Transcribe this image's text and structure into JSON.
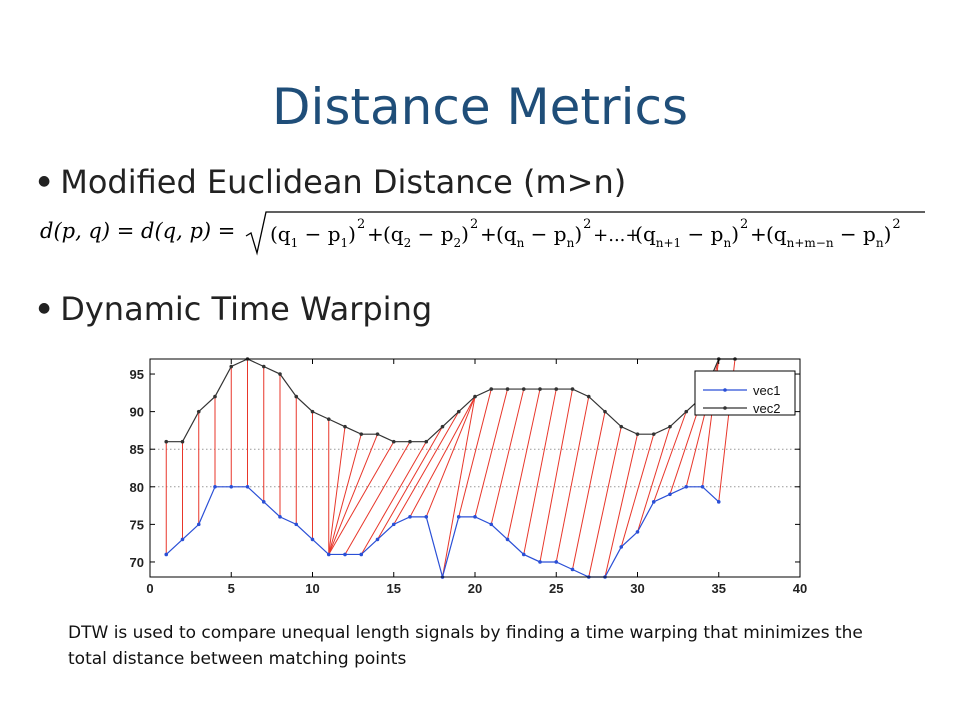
{
  "slide": {
    "title": "Distance Metrics",
    "bullets": [
      "Modified Euclidean Distance (m>n)",
      "Dynamic Time Warping"
    ],
    "formula": {
      "lhs": "d(p, q) = d(q, p) = ",
      "terms": [
        [
          "q",
          "1",
          "p",
          "1"
        ],
        [
          "q",
          "2",
          "p",
          "2"
        ],
        [
          "q",
          "n",
          "p",
          "n"
        ],
        [
          "q",
          "n+1",
          "p",
          "n"
        ],
        [
          "q",
          "n+m−n",
          "p",
          "n"
        ]
      ],
      "ellipsis": "...",
      "power": "2"
    },
    "caption": "DTW is used to compare unequal length signals by finding a time warping that minimizes the total distance between matching points",
    "colors": {
      "title": "#1f4e79",
      "vec1": "#2a4fd6",
      "vec2": "#333333",
      "warp": "#e8362a",
      "grid": "#999999"
    }
  },
  "chart_data": {
    "type": "line",
    "xlim": [
      0,
      40
    ],
    "ylim": [
      68,
      97
    ],
    "xticks": [
      0,
      5,
      10,
      15,
      20,
      25,
      30,
      35,
      40
    ],
    "yticks": [
      70,
      75,
      80,
      85,
      90,
      95
    ],
    "grid": "horizontal dotted at 80 and 85",
    "legend": {
      "placement": "top-right",
      "entries": [
        "vec1",
        "vec2"
      ]
    },
    "series": [
      {
        "name": "vec1",
        "x": [
          1,
          2,
          3,
          4,
          5,
          6,
          7,
          8,
          9,
          10,
          11,
          12,
          13,
          14,
          15,
          16,
          17,
          18,
          19,
          20,
          21,
          22,
          23,
          24,
          25,
          26,
          27,
          28,
          29,
          30,
          31,
          32,
          33,
          34,
          35
        ],
        "y": [
          71,
          73,
          75,
          80,
          80,
          80,
          78,
          76,
          75,
          73,
          71,
          71,
          71,
          73,
          75,
          76,
          76,
          68,
          76,
          76,
          75,
          73,
          71,
          70,
          70,
          69,
          68,
          68,
          72,
          74,
          78,
          79,
          80,
          80,
          78
        ]
      },
      {
        "name": "vec2",
        "x": [
          1,
          2,
          3,
          4,
          5,
          6,
          7,
          8,
          9,
          10,
          11,
          12,
          13,
          14,
          15,
          16,
          17,
          18,
          19,
          20,
          21,
          22,
          23,
          24,
          25,
          26,
          27,
          28,
          29,
          30,
          31,
          32,
          33,
          34,
          35,
          36
        ],
        "y": [
          86,
          86,
          90,
          92,
          96,
          97,
          96,
          95,
          92,
          90,
          89,
          88,
          87,
          87,
          86,
          86,
          86,
          88,
          90,
          92,
          93,
          93,
          93,
          93,
          93,
          93,
          92,
          90,
          88,
          87,
          87,
          88,
          90,
          92,
          97,
          97
        ]
      }
    ],
    "warping_path": [
      [
        1,
        1
      ],
      [
        2,
        2
      ],
      [
        3,
        3
      ],
      [
        4,
        4
      ],
      [
        5,
        5
      ],
      [
        6,
        6
      ],
      [
        7,
        7
      ],
      [
        8,
        8
      ],
      [
        9,
        9
      ],
      [
        10,
        10
      ],
      [
        11,
        11
      ],
      [
        11,
        12
      ],
      [
        11,
        13
      ],
      [
        11,
        14
      ],
      [
        11,
        15
      ],
      [
        12,
        16
      ],
      [
        13,
        17
      ],
      [
        14,
        18
      ],
      [
        15,
        19
      ],
      [
        16,
        20
      ],
      [
        17,
        20
      ],
      [
        18,
        20
      ],
      [
        19,
        21
      ],
      [
        20,
        22
      ],
      [
        21,
        23
      ],
      [
        22,
        24
      ],
      [
        23,
        25
      ],
      [
        24,
        26
      ],
      [
        25,
        27
      ],
      [
        26,
        28
      ],
      [
        27,
        29
      ],
      [
        28,
        30
      ],
      [
        29,
        31
      ],
      [
        30,
        32
      ],
      [
        31,
        33
      ],
      [
        32,
        34
      ],
      [
        33,
        35
      ],
      [
        34,
        35
      ],
      [
        35,
        36
      ]
    ]
  }
}
